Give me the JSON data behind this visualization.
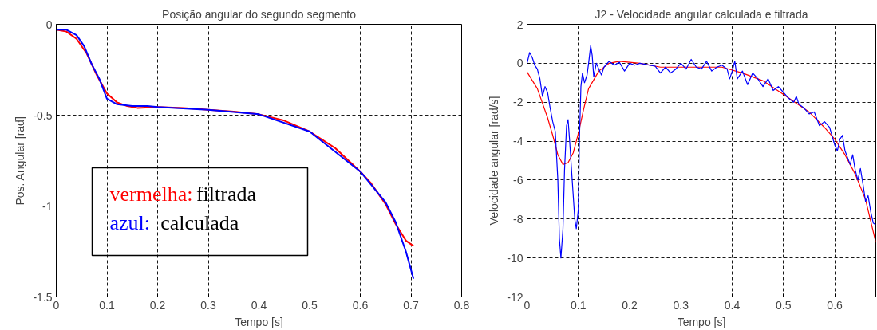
{
  "chart_data": [
    {
      "type": "line",
      "title": "Posição angular do segundo segmento",
      "xlabel": "Tempo [s]",
      "ylabel": "Pos. Angular [rad]",
      "xlim": [
        0,
        0.8
      ],
      "ylim": [
        -1.5,
        0
      ],
      "xticks": [
        0,
        0.1,
        0.2,
        0.3,
        0.4,
        0.5,
        0.6,
        0.7,
        0.8
      ],
      "yticks": [
        -1.5,
        -1,
        -0.5,
        0
      ],
      "grid": true,
      "line_style": "solid",
      "annotations": [
        "vermelha: filtrada",
        "azul: calculada"
      ],
      "series": [
        {
          "color": "#ff0000",
          "x": [
            0,
            0.02,
            0.04,
            0.06,
            0.08,
            0.1,
            0.12,
            0.14,
            0.16,
            0.2,
            0.25,
            0.3,
            0.35,
            0.4,
            0.45,
            0.5,
            0.55,
            0.6,
            0.62,
            0.65,
            0.67,
            0.69,
            0.705
          ],
          "values": [
            -0.03,
            -0.04,
            -0.08,
            -0.16,
            -0.28,
            -0.38,
            -0.43,
            -0.45,
            -0.46,
            -0.455,
            -0.46,
            -0.47,
            -0.48,
            -0.495,
            -0.53,
            -0.59,
            -0.68,
            -0.81,
            -0.87,
            -0.99,
            -1.1,
            -1.19,
            -1.22
          ]
        },
        {
          "color": "#0000ff",
          "x": [
            0,
            0.02,
            0.04,
            0.055,
            0.07,
            0.085,
            0.1,
            0.12,
            0.15,
            0.18,
            0.2,
            0.3,
            0.4,
            0.5,
            0.6,
            0.65,
            0.67,
            0.68,
            0.69,
            0.705
          ],
          "values": [
            -0.03,
            -0.03,
            -0.06,
            -0.12,
            -0.22,
            -0.3,
            -0.41,
            -0.44,
            -0.45,
            -0.45,
            -0.455,
            -0.47,
            -0.495,
            -0.59,
            -0.81,
            -0.98,
            -1.09,
            -1.17,
            -1.25,
            -1.4
          ]
        }
      ]
    },
    {
      "type": "line",
      "title": "J2 - Velocidade angular calculada e filtrada",
      "xlabel": "Tempo [s]",
      "ylabel": "Velocidade angular [rad/s]",
      "xlim": [
        0,
        0.68
      ],
      "ylim": [
        -12,
        2
      ],
      "xticks": [
        0,
        0.1,
        0.2,
        0.3,
        0.4,
        0.5,
        0.6
      ],
      "yticks": [
        -12,
        -10,
        -8,
        -6,
        -4,
        -2,
        0,
        2
      ],
      "grid": true,
      "line_style": "solid",
      "series": [
        {
          "color": "#ff0000",
          "x": [
            0,
            0.02,
            0.04,
            0.05,
            0.06,
            0.07,
            0.08,
            0.09,
            0.1,
            0.11,
            0.12,
            0.14,
            0.16,
            0.18,
            0.22,
            0.26,
            0.3,
            0.38,
            0.42,
            0.46,
            0.5,
            0.55,
            0.58,
            0.6,
            0.62,
            0.64,
            0.66,
            0.68
          ],
          "values": [
            -0.45,
            -1.3,
            -2.8,
            -3.7,
            -4.7,
            -5.2,
            -5.1,
            -4.6,
            -3.6,
            -2.4,
            -1.3,
            -0.4,
            0,
            0.1,
            0,
            -0.2,
            -0.2,
            -0.2,
            -0.5,
            -0.9,
            -1.6,
            -2.5,
            -3.3,
            -3.9,
            -4.7,
            -5.7,
            -7,
            -9.2
          ]
        },
        {
          "color": "#0000ff",
          "x": [
            0,
            0.005,
            0.01,
            0.015,
            0.02,
            0.025,
            0.03,
            0.035,
            0.04,
            0.045,
            0.05,
            0.055,
            0.06,
            0.063,
            0.066,
            0.07,
            0.073,
            0.077,
            0.08,
            0.083,
            0.088,
            0.093,
            0.096,
            0.1,
            0.102,
            0.105,
            0.108,
            0.112,
            0.117,
            0.12,
            0.124,
            0.127,
            0.13,
            0.135,
            0.14,
            0.145,
            0.15,
            0.16,
            0.17,
            0.18,
            0.19,
            0.2,
            0.21,
            0.22,
            0.23,
            0.24,
            0.25,
            0.26,
            0.27,
            0.28,
            0.29,
            0.3,
            0.31,
            0.32,
            0.33,
            0.34,
            0.35,
            0.36,
            0.37,
            0.38,
            0.39,
            0.395,
            0.4,
            0.405,
            0.41,
            0.42,
            0.43,
            0.44,
            0.45,
            0.46,
            0.47,
            0.48,
            0.49,
            0.5,
            0.51,
            0.52,
            0.525,
            0.53,
            0.54,
            0.55,
            0.56,
            0.57,
            0.58,
            0.59,
            0.6,
            0.605,
            0.61,
            0.615,
            0.62,
            0.63,
            0.635,
            0.64,
            0.645,
            0.65,
            0.655,
            0.66,
            0.665,
            0.67,
            0.675,
            0.68
          ],
          "values": [
            0,
            0.55,
            0.3,
            -0.1,
            -0.3,
            -0.8,
            -1.7,
            -1.2,
            -1.5,
            -2.3,
            -3.0,
            -3.5,
            -6,
            -9,
            -10,
            -8.5,
            -5.5,
            -3.2,
            -2.9,
            -4,
            -6,
            -8,
            -8.5,
            -7.5,
            -4,
            -1.2,
            -0.5,
            -1,
            -0.6,
            0,
            0.9,
            0.4,
            -0.7,
            0,
            -0.3,
            -0.6,
            -0.2,
            0.1,
            -0.1,
            0.05,
            -0.4,
            0,
            -0.1,
            0,
            -0.05,
            -0.1,
            -0.15,
            -0.5,
            -0.2,
            -0.5,
            -0.3,
            0,
            -0.3,
            0.2,
            -0.2,
            -0.3,
            0.1,
            -0.4,
            -0.2,
            -0.1,
            -0.3,
            -0.8,
            -0.4,
            0.1,
            -0.8,
            -0.4,
            -1.1,
            -0.5,
            -0.8,
            -1.2,
            -0.8,
            -1.4,
            -1.2,
            -1.5,
            -1.8,
            -2,
            -1.7,
            -2.1,
            -2.3,
            -2.6,
            -2.5,
            -3.2,
            -3.0,
            -3.3,
            -4.2,
            -4.5,
            -3.9,
            -3.7,
            -4.5,
            -5.2,
            -4.7,
            -5.5,
            -6,
            -5.4,
            -6.2,
            -7.1,
            -6.8,
            -7.6,
            -8.2,
            -8.3
          ]
        }
      ]
    }
  ]
}
